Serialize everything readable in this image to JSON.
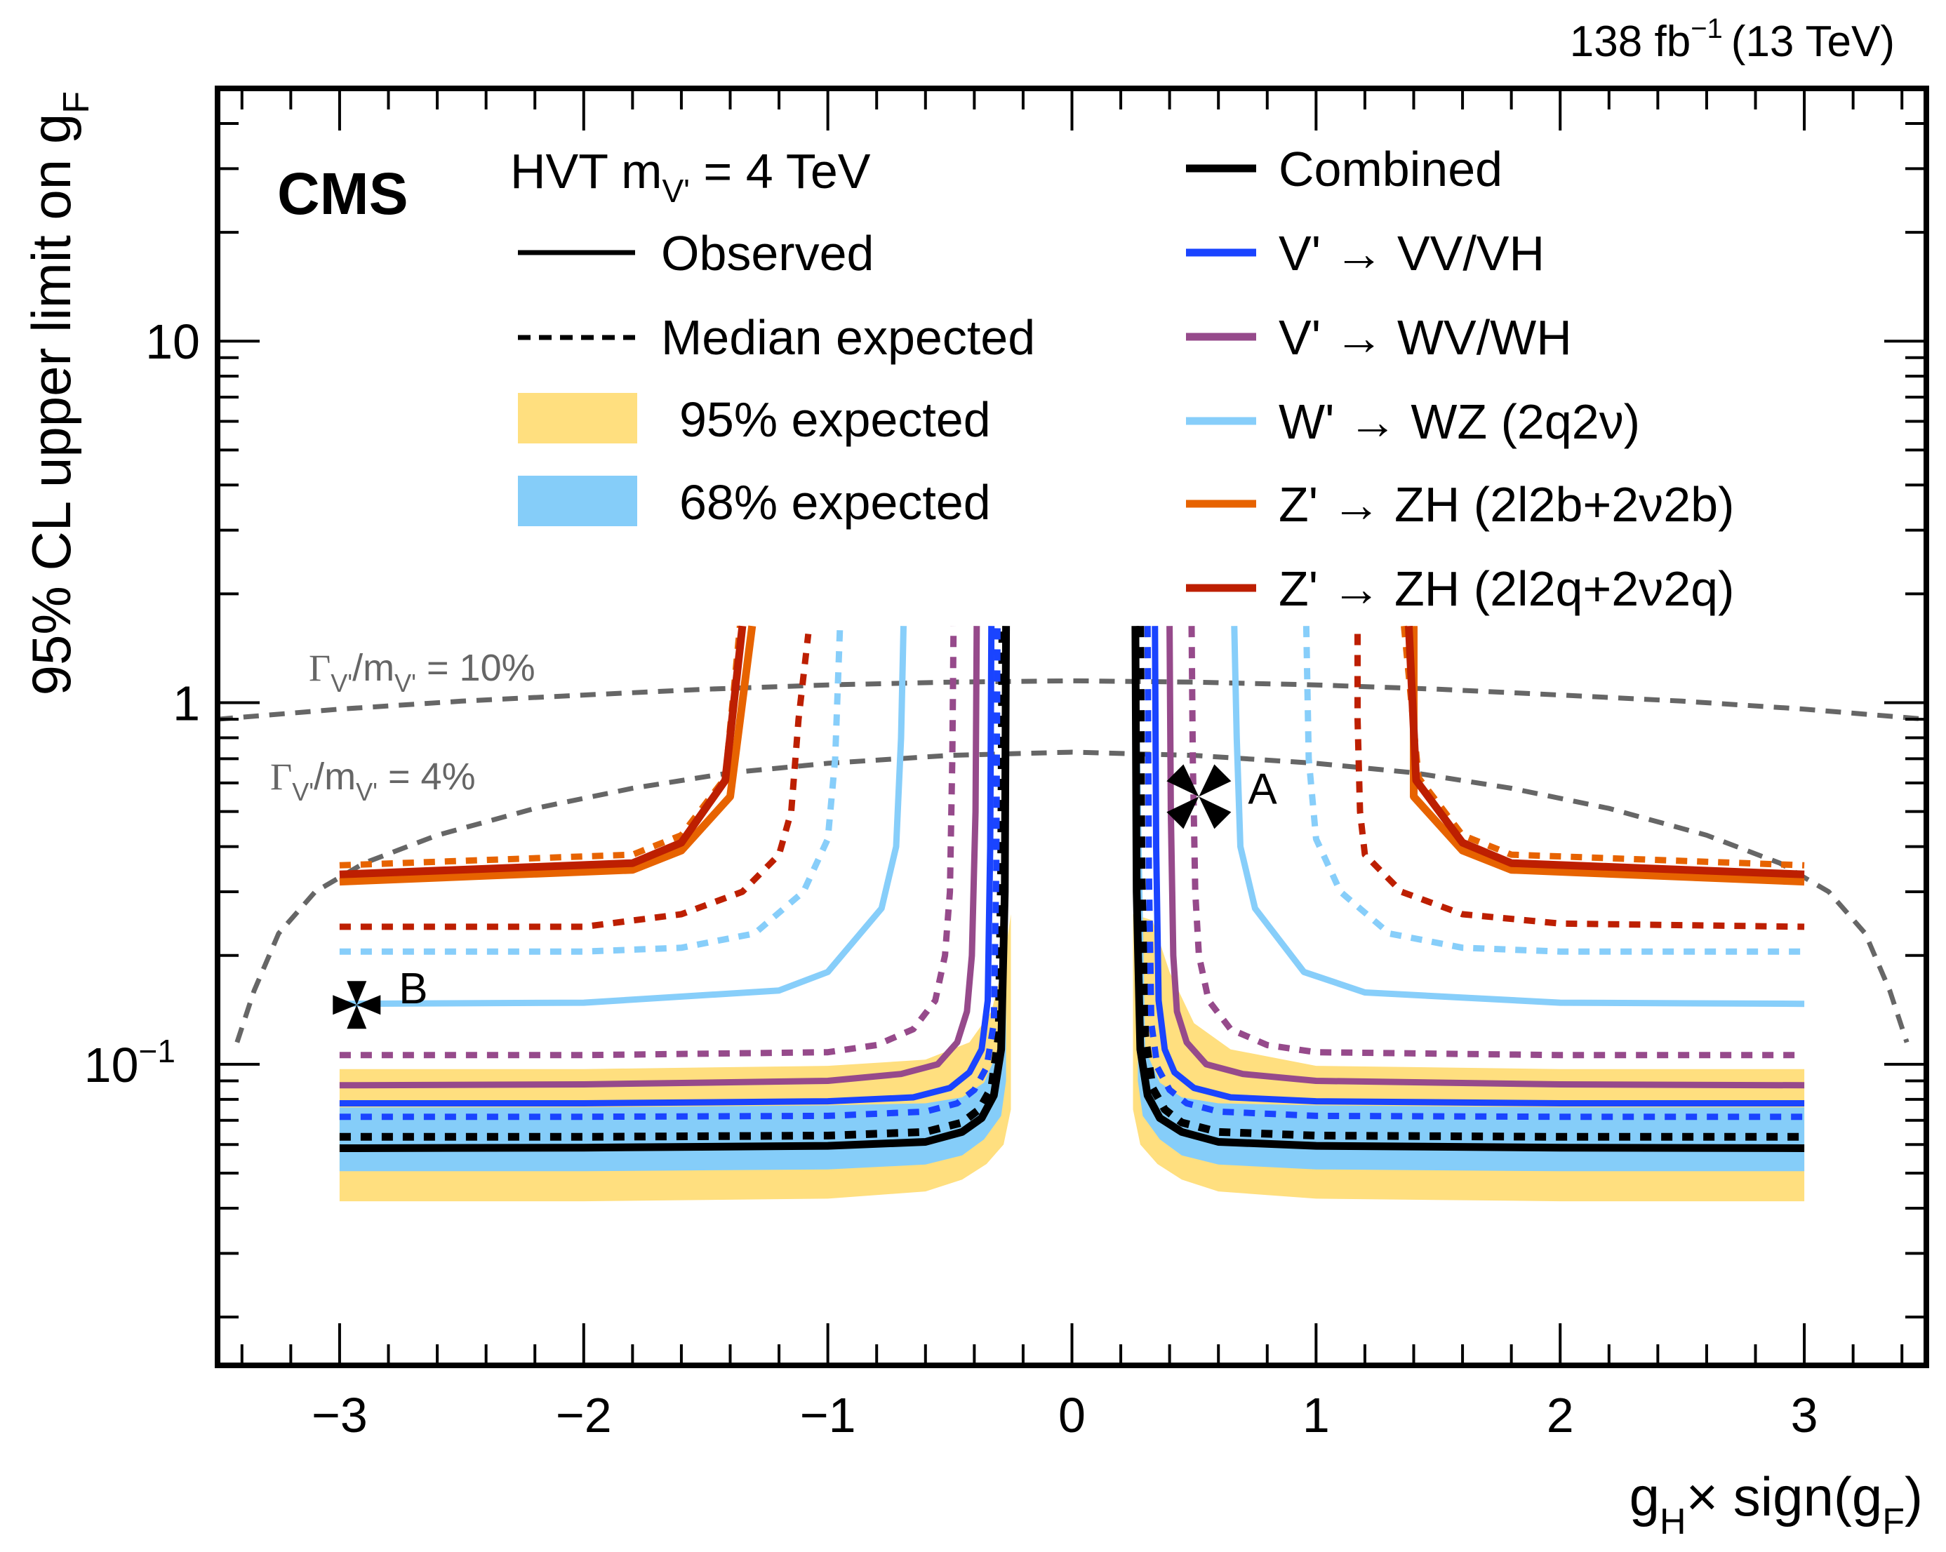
{
  "chart_data": {
    "type": "line",
    "title": "",
    "experiment_label": "CMS",
    "lumi_label": {
      "main": "138 fb",
      "sup": "−1",
      "energy": "(13 TeV)"
    },
    "xlabel": {
      "g": "g",
      "sub_h": "H",
      "times": "× sign(g",
      "sub_f": "F",
      "close": ")"
    },
    "ylabel": {
      "main": "95% CL upper limit on g",
      "sub": "F"
    },
    "xlim": [
      -3.5,
      3.5
    ],
    "ylim": [
      0.0147,
      50
    ],
    "yscale": "log",
    "x_ticks": [
      {
        "value": -3,
        "label": "−3"
      },
      {
        "value": -2,
        "label": "−2"
      },
      {
        "value": -1,
        "label": "−1"
      },
      {
        "value": 0,
        "label": "0"
      },
      {
        "value": 1,
        "label": "1"
      },
      {
        "value": 2,
        "label": "2"
      },
      {
        "value": 3,
        "label": "3"
      }
    ],
    "x_minor_step": 0.2,
    "y_ticks": [
      {
        "value": 0.1,
        "label": "10",
        "sup": "−1"
      },
      {
        "value": 1,
        "label": "1",
        "sup": ""
      },
      {
        "value": 10,
        "label": "10",
        "sup": ""
      }
    ],
    "grid": false,
    "legend_header": {
      "prefix": "HVT m",
      "sub": "V'",
      "suffix": " = 4 TeV"
    },
    "legend_style": [
      {
        "label": "Observed",
        "kind": "solid",
        "color": "#000000"
      },
      {
        "label": "Median expected",
        "kind": "dashed",
        "color": "#000000"
      },
      {
        "label": "95% expected",
        "kind": "box",
        "color": "#ffdf7f"
      },
      {
        "label": "68% expected",
        "kind": "box",
        "color": "#85cdf9"
      }
    ],
    "legend_channels": [
      {
        "label": "Combined",
        "color": "#000000"
      },
      {
        "label": "V' → VV/VH",
        "color": "#1a44ff"
      },
      {
        "label": "V' → WV/WH",
        "color": "#964a8b"
      },
      {
        "label": "W' → WZ (2q2ν)",
        "color": "#87cefa"
      },
      {
        "label": "Z' → ZH (2l2b+2ν2b)",
        "color": "#e76300"
      },
      {
        "label": "Z' → ZH (2l2q+2ν2q)",
        "color": "#bd1f01"
      }
    ],
    "legend_position": "top",
    "bands": [
      {
        "name": "95% expected",
        "color": "#ffdf7f",
        "left": {
          "x": [
            -3.0,
            -2.0,
            -1.0,
            -0.6,
            -0.45,
            -0.35,
            -0.28,
            -0.25,
            -0.25,
            -0.28,
            -0.33,
            -0.42,
            -0.6,
            -1.0,
            -2.0,
            -3.0
          ],
          "y_low_then_high": [
            0.0418,
            0.0418,
            0.0425,
            0.0445,
            0.048,
            0.053,
            0.06,
            0.075,
            0.26,
            0.19,
            0.14,
            0.115,
            0.103,
            0.099,
            0.097,
            0.097
          ]
        },
        "right": {
          "x": [
            0.25,
            0.25,
            0.28,
            0.35,
            0.45,
            0.6,
            1.0,
            2.0,
            3.0,
            3.0,
            2.0,
            1.0,
            0.65,
            0.5,
            0.4,
            0.33
          ],
          "y_low_then_high": [
            0.26,
            0.075,
            0.06,
            0.053,
            0.048,
            0.0445,
            0.0425,
            0.0418,
            0.0418,
            0.097,
            0.097,
            0.099,
            0.11,
            0.13,
            0.18,
            0.25
          ]
        }
      },
      {
        "name": "68% expected",
        "color": "#85cdf9",
        "left": {
          "x": [
            -3.0,
            -2.0,
            -1.0,
            -0.6,
            -0.45,
            -0.36,
            -0.29,
            -0.27,
            -0.27,
            -0.3,
            -0.36,
            -0.45,
            -0.6,
            -1.0,
            -2.0,
            -3.0
          ],
          "y_low_then_high": [
            0.0506,
            0.0506,
            0.0512,
            0.0528,
            0.056,
            0.062,
            0.072,
            0.09,
            1.63,
            0.11,
            0.089,
            0.081,
            0.078,
            0.077,
            0.076,
            0.076
          ]
        },
        "right": {
          "x": [
            0.27,
            0.27,
            0.29,
            0.36,
            0.45,
            0.6,
            1.0,
            2.0,
            3.0,
            3.0,
            2.0,
            1.0,
            0.6,
            0.45,
            0.36,
            0.3
          ],
          "y_low_then_high": [
            1.63,
            0.09,
            0.072,
            0.062,
            0.056,
            0.0528,
            0.0512,
            0.0506,
            0.0506,
            0.076,
            0.076,
            0.077,
            0.078,
            0.081,
            0.089,
            0.11
          ]
        }
      }
    ],
    "width_contours": [
      {
        "label": {
          "gamma": "Γ",
          "sub1": "V'",
          "mid": "/m",
          "sub2": "V'",
          "value": " = 10%"
        },
        "color": "#666666",
        "x": [
          -3.5,
          -3.0,
          -2.5,
          -2.0,
          -1.5,
          -1.0,
          -0.5,
          0.0,
          0.5,
          1.0,
          1.5,
          2.0,
          2.5,
          3.0,
          3.5
        ],
        "y": [
          0.9,
          0.96,
          1.01,
          1.05,
          1.09,
          1.12,
          1.14,
          1.15,
          1.14,
          1.12,
          1.09,
          1.05,
          1.01,
          0.96,
          0.9
        ]
      },
      {
        "label": {
          "gamma": "Γ",
          "sub1": "V'",
          "mid": "/m",
          "sub2": "V'",
          "value": " = 4%"
        },
        "color": "#666666",
        "x": [
          -3.42,
          -3.35,
          -3.25,
          -3.1,
          -2.9,
          -2.6,
          -2.2,
          -1.8,
          -1.4,
          -1.0,
          -0.5,
          0.0,
          0.5,
          1.0,
          1.4,
          1.8,
          2.2,
          2.6,
          2.9,
          3.1,
          3.25,
          3.35,
          3.42
        ],
        "y": [
          0.115,
          0.16,
          0.23,
          0.3,
          0.36,
          0.43,
          0.51,
          0.58,
          0.64,
          0.68,
          0.715,
          0.73,
          0.715,
          0.68,
          0.64,
          0.58,
          0.51,
          0.43,
          0.36,
          0.3,
          0.23,
          0.16,
          0.115
        ]
      }
    ],
    "series": [
      {
        "name": "Combined observed",
        "channel": "Combined",
        "style": "solid",
        "color": "#000000",
        "width": "thick",
        "left": {
          "x": [
            -3.0,
            -2.0,
            -1.0,
            -0.6,
            -0.45,
            -0.37,
            -0.32,
            -0.29,
            -0.275,
            -0.27
          ],
          "y": [
            0.0586,
            0.0588,
            0.0595,
            0.061,
            0.065,
            0.071,
            0.082,
            0.11,
            0.3,
            1.63
          ]
        },
        "right": {
          "x": [
            0.26,
            0.265,
            0.28,
            0.31,
            0.36,
            0.45,
            0.6,
            1.0,
            2.0,
            3.0
          ],
          "y": [
            1.63,
            0.3,
            0.11,
            0.082,
            0.071,
            0.065,
            0.061,
            0.0595,
            0.0588,
            0.0586
          ]
        }
      },
      {
        "name": "Combined expected",
        "channel": "Combined",
        "style": "dashed",
        "color": "#000000",
        "width": "thick",
        "left": {
          "x": [
            -3.0,
            -2.0,
            -1.0,
            -0.6,
            -0.45,
            -0.38,
            -0.33,
            -0.3,
            -0.29,
            -0.285
          ],
          "y": [
            0.063,
            0.063,
            0.0635,
            0.065,
            0.069,
            0.075,
            0.086,
            0.12,
            0.35,
            1.63
          ]
        },
        "right": {
          "x": [
            0.28,
            0.285,
            0.3,
            0.33,
            0.38,
            0.45,
            0.6,
            1.0,
            2.0,
            3.0
          ],
          "y": [
            1.63,
            0.35,
            0.12,
            0.086,
            0.075,
            0.069,
            0.065,
            0.0635,
            0.063,
            0.063
          ]
        }
      },
      {
        "name": "V' to VV/VH observed",
        "channel": "V' → VV/VH",
        "style": "solid",
        "color": "#1a44ff",
        "width": "normal",
        "left": {
          "x": [
            -3.0,
            -2.0,
            -1.0,
            -0.65,
            -0.5,
            -0.42,
            -0.37,
            -0.345,
            -0.335,
            -0.33
          ],
          "y": [
            0.078,
            0.078,
            0.079,
            0.081,
            0.086,
            0.095,
            0.11,
            0.15,
            0.4,
            1.63
          ]
        },
        "right": {
          "x": [
            0.34,
            0.345,
            0.355,
            0.38,
            0.42,
            0.5,
            0.65,
            1.0,
            2.0,
            3.0
          ],
          "y": [
            1.63,
            0.4,
            0.15,
            0.11,
            0.095,
            0.086,
            0.081,
            0.079,
            0.078,
            0.078
          ]
        }
      },
      {
        "name": "V' to VV/VH expected",
        "channel": "V' → VV/VH",
        "style": "dashed",
        "color": "#1a44ff",
        "width": "normal",
        "left": {
          "x": [
            -3.0,
            -2.0,
            -1.0,
            -0.6,
            -0.47,
            -0.4,
            -0.35,
            -0.32,
            -0.31,
            -0.305
          ],
          "y": [
            0.0716,
            0.0716,
            0.072,
            0.074,
            0.078,
            0.085,
            0.098,
            0.13,
            0.35,
            1.63
          ]
        },
        "right": {
          "x": [
            0.31,
            0.315,
            0.325,
            0.35,
            0.4,
            0.47,
            0.6,
            1.0,
            2.0,
            3.0
          ],
          "y": [
            1.63,
            0.35,
            0.13,
            0.098,
            0.085,
            0.078,
            0.074,
            0.072,
            0.0716,
            0.0716
          ]
        }
      },
      {
        "name": "V' to WV/WH observed",
        "channel": "V' → WV/WH",
        "style": "solid",
        "color": "#964a8b",
        "width": "normal",
        "left": {
          "x": [
            -3.0,
            -2.0,
            -1.0,
            -0.7,
            -0.55,
            -0.47,
            -0.43,
            -0.41,
            -0.395,
            -0.39
          ],
          "y": [
            0.0875,
            0.088,
            0.09,
            0.094,
            0.1,
            0.115,
            0.14,
            0.2,
            0.5,
            1.63
          ]
        },
        "right": {
          "x": [
            0.4,
            0.405,
            0.415,
            0.43,
            0.47,
            0.55,
            0.7,
            1.0,
            2.0,
            3.0
          ],
          "y": [
            1.63,
            0.5,
            0.2,
            0.14,
            0.115,
            0.1,
            0.094,
            0.09,
            0.088,
            0.0875
          ]
        }
      },
      {
        "name": "V' to WV/WH expected",
        "channel": "V' → WV/WH",
        "style": "dashed",
        "color": "#964a8b",
        "width": "normal",
        "left": {
          "x": [
            -3.0,
            -2.0,
            -1.0,
            -0.8,
            -0.65,
            -0.56,
            -0.52,
            -0.5,
            -0.49,
            -0.485
          ],
          "y": [
            0.106,
            0.106,
            0.108,
            0.113,
            0.125,
            0.15,
            0.2,
            0.3,
            0.7,
            1.63
          ]
        },
        "right": {
          "x": [
            0.49,
            0.495,
            0.505,
            0.52,
            0.56,
            0.65,
            0.8,
            1.0,
            2.0,
            3.0
          ],
          "y": [
            1.63,
            0.7,
            0.3,
            0.2,
            0.15,
            0.125,
            0.113,
            0.108,
            0.106,
            0.106
          ]
        }
      },
      {
        "name": "W' to WZ (2q2nu) observed",
        "channel": "W' → WZ (2q2ν)",
        "style": "solid",
        "color": "#87cefa",
        "width": "normal",
        "left": {
          "x": [
            -3.0,
            -2.0,
            -1.2,
            -1.0,
            -0.78,
            -0.72,
            -0.7,
            -0.69
          ],
          "y": [
            0.147,
            0.148,
            0.16,
            0.18,
            0.27,
            0.4,
            0.8,
            1.63
          ]
        },
        "right": {
          "x": [
            0.665,
            0.675,
            0.69,
            0.75,
            0.95,
            1.2,
            2.0,
            3.0
          ],
          "y": [
            1.63,
            0.8,
            0.4,
            0.27,
            0.18,
            0.158,
            0.148,
            0.147
          ]
        }
      },
      {
        "name": "W' to WZ (2q2nu) expected",
        "channel": "W' → WZ (2q2ν)",
        "style": "dashed",
        "color": "#87cefa",
        "width": "normal",
        "left": {
          "x": [
            -3.0,
            -2.0,
            -1.6,
            -1.3,
            -1.1,
            -1.0,
            -0.97,
            -0.95
          ],
          "y": [
            0.205,
            0.205,
            0.21,
            0.23,
            0.3,
            0.42,
            0.7,
            1.63
          ]
        },
        "right": {
          "x": [
            0.96,
            0.97,
            1.0,
            1.1,
            1.3,
            1.6,
            2.0,
            3.0
          ],
          "y": [
            1.63,
            0.7,
            0.42,
            0.3,
            0.23,
            0.21,
            0.205,
            0.205
          ]
        }
      },
      {
        "name": "Z' to ZH (2l2b+2nu2b) observed",
        "channel": "Z' → ZH (2l2b+2ν2b)",
        "style": "solid",
        "color": "#e76300",
        "width": "thick",
        "left": {
          "x": [
            -3.0,
            -1.8,
            -1.6,
            -1.4,
            -1.31
          ],
          "y": [
            0.32,
            0.345,
            0.39,
            0.55,
            1.63
          ]
        },
        "right": {
          "x": [
            1.4,
            1.4,
            1.6,
            1.8,
            3.0
          ],
          "y": [
            1.63,
            0.55,
            0.39,
            0.345,
            0.32
          ]
        }
      },
      {
        "name": "Z' to ZH (2l2b+2nu2b) expected",
        "channel": "Z' → ZH (2l2b+2ν2b)",
        "style": "dashed",
        "color": "#e76300",
        "width": "normal",
        "left": {
          "x": [
            -3.0,
            -1.8,
            -1.6,
            -1.42,
            -1.36
          ],
          "y": [
            0.355,
            0.38,
            0.43,
            0.62,
            1.63
          ]
        },
        "right": {
          "x": [
            1.36,
            1.42,
            1.6,
            1.8,
            3.0
          ],
          "y": [
            1.63,
            0.62,
            0.43,
            0.38,
            0.355
          ]
        }
      },
      {
        "name": "Z' to ZH (2l2q+2nu2q) observed",
        "channel": "Z' → ZH (2l2q+2ν2q)",
        "style": "solid",
        "color": "#bd1f01",
        "width": "thick",
        "left": {
          "x": [
            -3.0,
            -1.8,
            -1.6,
            -1.42,
            -1.35
          ],
          "y": [
            0.335,
            0.36,
            0.41,
            0.61,
            1.63
          ]
        },
        "right": {
          "x": [
            1.38,
            1.41,
            1.6,
            1.8,
            3.0
          ],
          "y": [
            1.63,
            0.61,
            0.41,
            0.36,
            0.335
          ]
        }
      },
      {
        "name": "Z' to ZH (2l2q+2nu2q) expected",
        "channel": "Z' → ZH (2l2q+2ν2q)",
        "style": "dashed",
        "color": "#bd1f01",
        "width": "normal",
        "left": {
          "x": [
            -3.0,
            -2.0,
            -1.6,
            -1.35,
            -1.2,
            -1.15,
            -1.12,
            -1.08
          ],
          "y": [
            0.24,
            0.24,
            0.26,
            0.3,
            0.38,
            0.5,
            0.9,
            1.55
          ]
        },
        "right": {
          "x": [
            1.17,
            1.17,
            1.18,
            1.2,
            1.35,
            1.6,
            2.0,
            3.0
          ],
          "y": [
            1.55,
            0.9,
            0.5,
            0.38,
            0.3,
            0.26,
            0.245,
            0.24
          ]
        }
      }
    ],
    "annotations": [
      {
        "label": "A",
        "marker": "cross-x",
        "x": 0.52,
        "y": 0.55
      },
      {
        "label": "B",
        "marker": "cross-plus",
        "x": -2.93,
        "y": 0.146
      }
    ]
  }
}
